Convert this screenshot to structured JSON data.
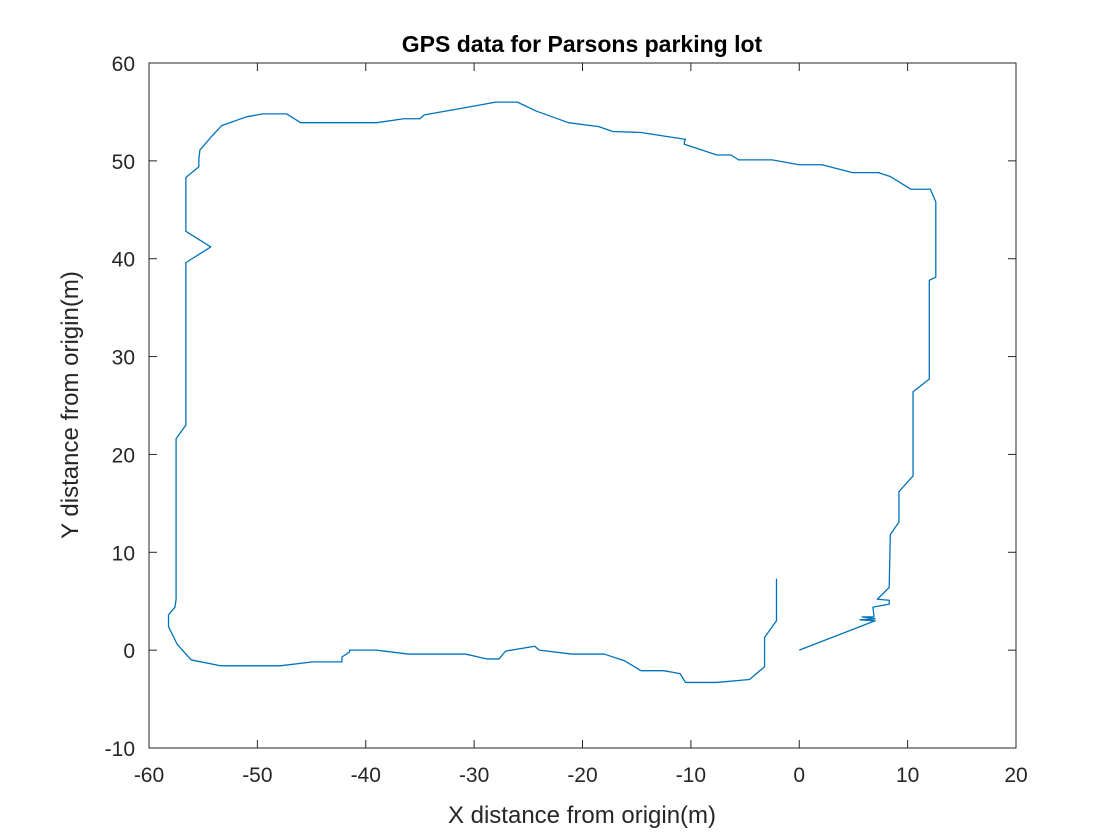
{
  "chart_data": {
    "type": "line",
    "title": "GPS data for Parsons parking lot",
    "xlabel": "X distance from origin(m)",
    "ylabel": "Y distance from origin(m)",
    "xlim": [
      -60,
      20
    ],
    "ylim": [
      -10,
      60
    ],
    "xticks": [
      -60,
      -50,
      -40,
      -30,
      -20,
      -10,
      0,
      10,
      20
    ],
    "yticks": [
      -10,
      0,
      10,
      20,
      30,
      40,
      50,
      60
    ],
    "xtick_labels": [
      "-60",
      "-50",
      "-40",
      "-30",
      "-20",
      "-10",
      "0",
      "10",
      "20"
    ],
    "ytick_labels": [
      "-10",
      "0",
      "10",
      "20",
      "30",
      "40",
      "50",
      "60"
    ],
    "grid": false,
    "line_color": "#0072BD",
    "axis_color": "#262626",
    "series": [
      {
        "points": [
          [
            0,
            0
          ],
          [
            7,
            3
          ],
          [
            5.6,
            3.1
          ],
          [
            7,
            3.2
          ],
          [
            5.8,
            3.4
          ],
          [
            6.9,
            3.4
          ],
          [
            6.8,
            4.4
          ],
          [
            8.3,
            4.7
          ],
          [
            8.3,
            5.1
          ],
          [
            7.2,
            5.2
          ],
          [
            8.3,
            6.4
          ],
          [
            8.4,
            11.8
          ],
          [
            9.2,
            13.1
          ],
          [
            9.2,
            16.2
          ],
          [
            10.5,
            17.8
          ],
          [
            10.5,
            26.4
          ],
          [
            12,
            27.7
          ],
          [
            12,
            37.8
          ],
          [
            12.6,
            38.1
          ],
          [
            12.6,
            45.8
          ],
          [
            12.1,
            47.1
          ],
          [
            10.3,
            47.1
          ],
          [
            8.4,
            48.4
          ],
          [
            7.3,
            48.8
          ],
          [
            4.9,
            48.8
          ],
          [
            2.1,
            49.6
          ],
          [
            0,
            49.6
          ],
          [
            -2.5,
            50.1
          ],
          [
            -5.6,
            50.1
          ],
          [
            -6.3,
            50.6
          ],
          [
            -7.6,
            50.6
          ],
          [
            -10.6,
            51.7
          ],
          [
            -10.6,
            52
          ],
          [
            -10.5,
            52.2
          ],
          [
            -14.6,
            52.9
          ],
          [
            -17.2,
            53
          ],
          [
            -18.5,
            53.5
          ],
          [
            -21.3,
            53.9
          ],
          [
            -24.3,
            55.1
          ],
          [
            -26,
            56
          ],
          [
            -28,
            56
          ],
          [
            -31,
            55.4
          ],
          [
            -34.6,
            54.7
          ],
          [
            -35,
            54.3
          ],
          [
            -36.5,
            54.3
          ],
          [
            -39,
            53.9
          ],
          [
            -46,
            53.9
          ],
          [
            -47.3,
            54.8
          ],
          [
            -49.5,
            54.8
          ],
          [
            -51,
            54.5
          ],
          [
            -53.3,
            53.6
          ],
          [
            -54.3,
            52.4
          ],
          [
            -55.3,
            51.1
          ],
          [
            -55.4,
            50.2
          ],
          [
            -55.4,
            49.4
          ],
          [
            -56.6,
            48.3
          ],
          [
            -56.6,
            42.8
          ],
          [
            -54.3,
            41.2
          ],
          [
            -56.6,
            39.6
          ],
          [
            -56.6,
            23
          ],
          [
            -57.5,
            21.6
          ],
          [
            -57.5,
            5.2
          ],
          [
            -57.6,
            4.4
          ],
          [
            -58.2,
            3.6
          ],
          [
            -58.2,
            2.4
          ],
          [
            -57.4,
            0.6
          ],
          [
            -56.1,
            -1
          ],
          [
            -53.4,
            -1.6
          ],
          [
            -47.9,
            -1.6
          ],
          [
            -44.9,
            -1.2
          ],
          [
            -42.2,
            -1.2
          ],
          [
            -42.2,
            -0.7
          ],
          [
            -41.5,
            -0.2
          ],
          [
            -41.5,
            0
          ],
          [
            -39,
            0
          ],
          [
            -36.1,
            -0.4
          ],
          [
            -30.8,
            -0.4
          ],
          [
            -28.8,
            -0.9
          ],
          [
            -27.7,
            -0.9
          ],
          [
            -27.1,
            -0.1
          ],
          [
            -24.4,
            0.4
          ],
          [
            -24,
            0
          ],
          [
            -21,
            -0.4
          ],
          [
            -18,
            -0.4
          ],
          [
            -16.1,
            -1.1
          ],
          [
            -14.6,
            -2.1
          ],
          [
            -12.5,
            -2.1
          ],
          [
            -11,
            -2.4
          ],
          [
            -10.5,
            -3.3
          ],
          [
            -7.6,
            -3.3
          ],
          [
            -4.6,
            -3
          ],
          [
            -3.2,
            -1.7
          ],
          [
            -3.2,
            1.3
          ],
          [
            -2.1,
            3
          ],
          [
            -2.1,
            7.3
          ]
        ]
      }
    ]
  }
}
